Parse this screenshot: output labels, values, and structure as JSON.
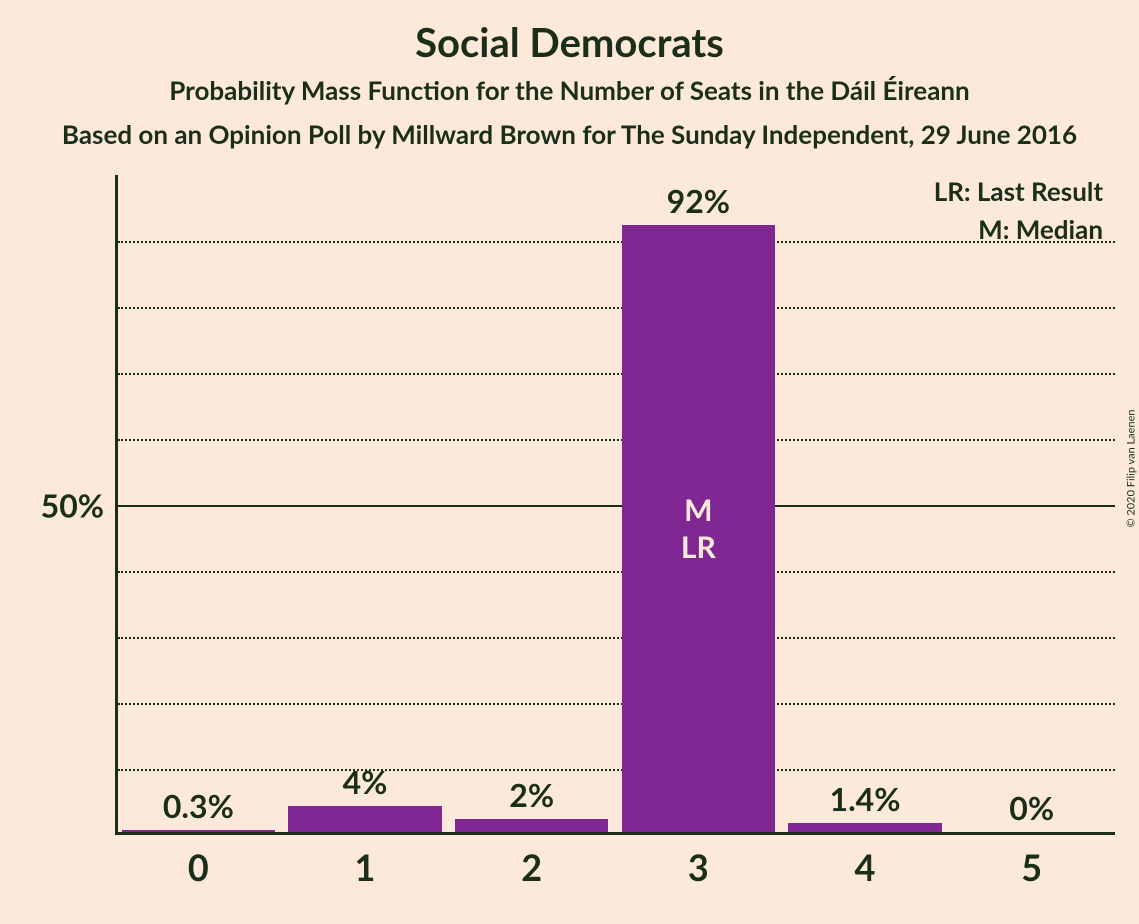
{
  "title": "Social Democrats",
  "subtitle": "Probability Mass Function for the Number of Seats in the Dáil Éireann",
  "subtitle2": "Based on an Opinion Poll by Millward Brown for The Sunday Independent, 29 June 2016",
  "copyright": "© 2020 Filip van Laenen",
  "chart": {
    "type": "bar",
    "categories": [
      "0",
      "1",
      "2",
      "3",
      "4",
      "5"
    ],
    "values": [
      0.3,
      4,
      2,
      92,
      1.4,
      0
    ],
    "value_labels": [
      "0.3%",
      "4%",
      "2%",
      "92%",
      "1.4%",
      "0%"
    ],
    "bar_color": "#802794",
    "background_color": "#fce9da",
    "axis_color": "#1a2e1a",
    "text_color": "#1a2e1a",
    "y_max": 100,
    "y_grid_step": 10,
    "y_axis_label": "50%",
    "y_axis_label_at": 50,
    "bar_width_ratio": 0.92,
    "title_fontsize": 40,
    "subtitle_fontsize": 26,
    "label_fontsize": 32,
    "xtick_fontsize": 36,
    "legend_fontsize": 26,
    "annotation_fontsize": 30
  },
  "legend": {
    "lr": "LR: Last Result",
    "m": "M: Median"
  },
  "annotations": {
    "median_index": 3,
    "median_label": "M",
    "lr_index": 3,
    "lr_label": "LR"
  }
}
